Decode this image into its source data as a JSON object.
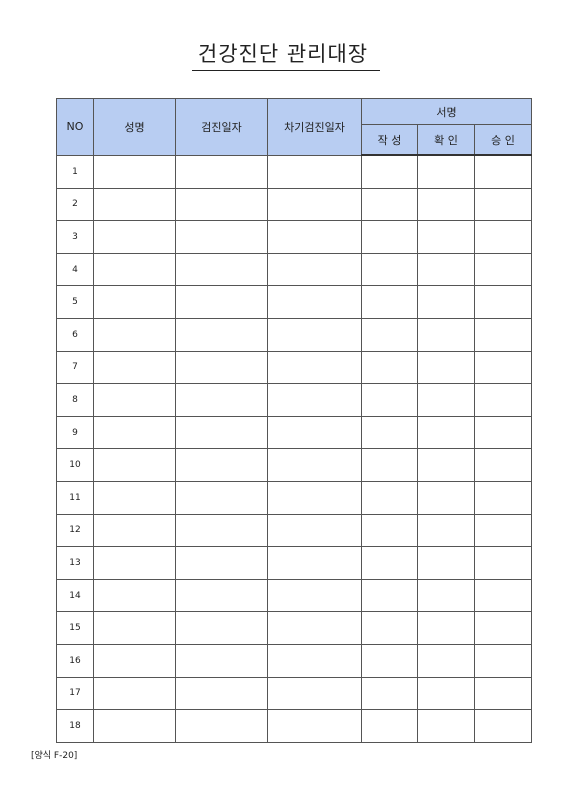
{
  "title": "건강진단 관리대장",
  "columns": {
    "no": "NO",
    "name": "성명",
    "exam_date": "검진일자",
    "next_exam_date": "차기검진일자",
    "signature": "서명",
    "sign_write": "작 성",
    "sign_confirm": "확 인",
    "sign_approve": "승 인"
  },
  "rows": [
    "1",
    "2",
    "3",
    "4",
    "5",
    "6",
    "7",
    "8",
    "9",
    "10",
    "11",
    "12",
    "13",
    "14",
    "15",
    "16",
    "17",
    "18"
  ],
  "footnote": "[양식 F-20]",
  "colors": {
    "header_bg": "#b8cdf2",
    "border": "#555555"
  }
}
